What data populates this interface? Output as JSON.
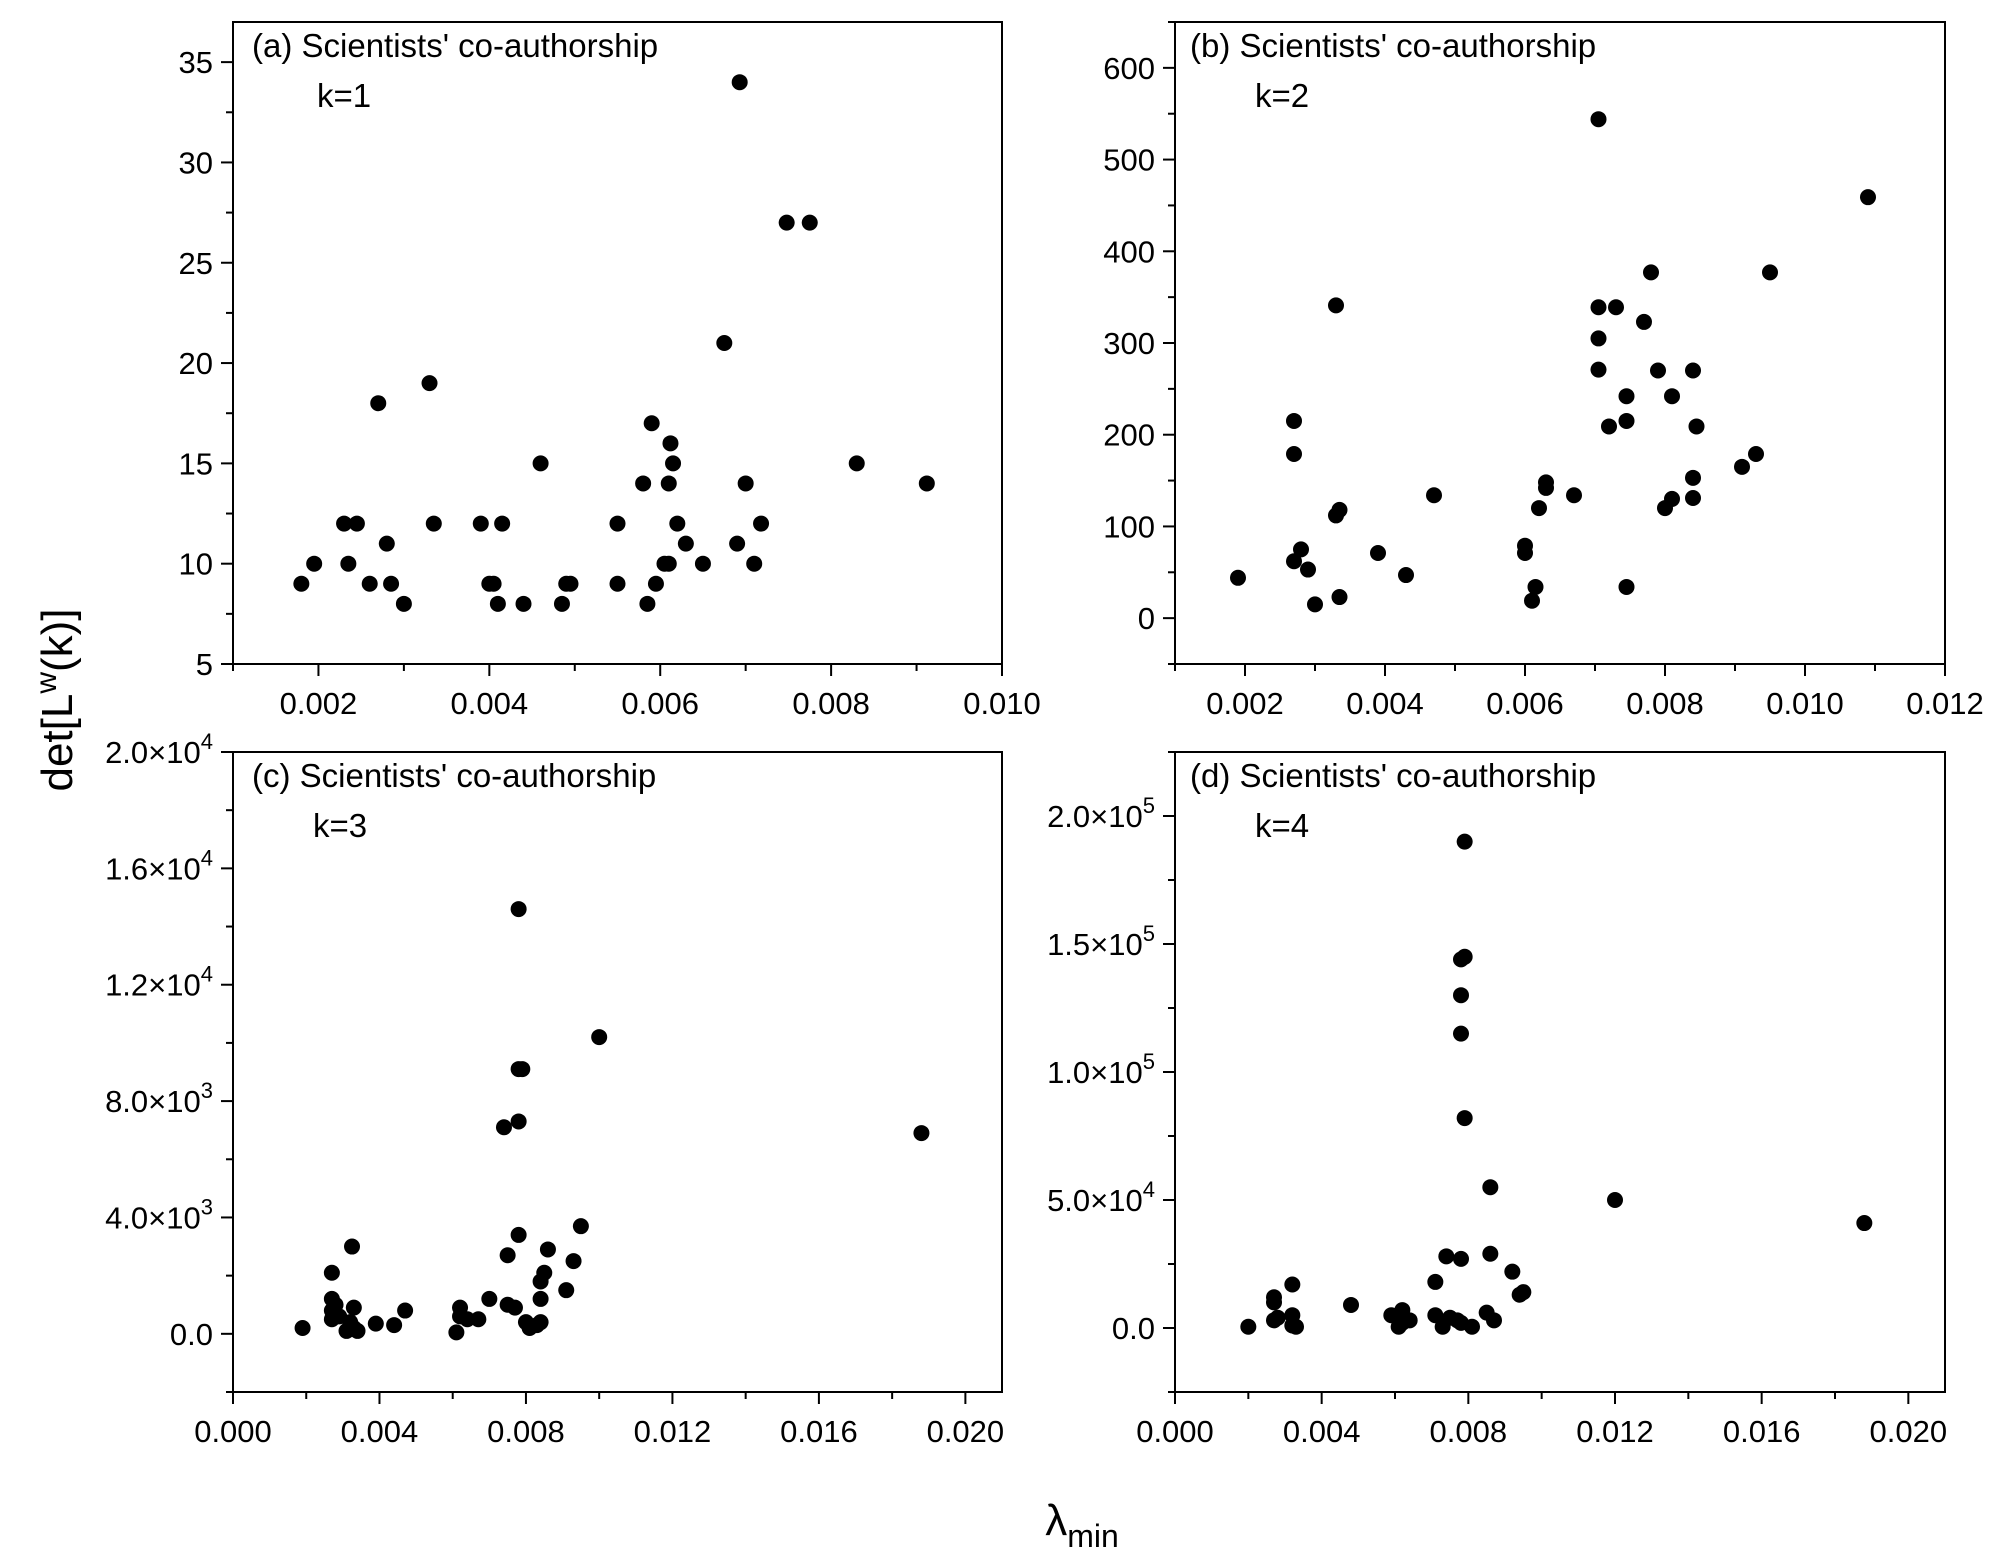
{
  "figure": {
    "ylabel_main": "det[L",
    "ylabel_sup": "w",
    "ylabel_tail": "(k)]",
    "xlabel_main": "λ",
    "xlabel_sub": "min"
  },
  "chart_data": [
    {
      "type": "scatter",
      "title": "(a) Scientists' co-authorship",
      "k_label": "k=1",
      "xlim": [
        0.001,
        0.01
      ],
      "ylim": [
        5,
        37
      ],
      "xticks": [
        0.002,
        0.004,
        0.006,
        0.008,
        0.01
      ],
      "xtick_labels": [
        "0.002",
        "0.004",
        "0.006",
        "0.008",
        "0.010"
      ],
      "yticks": [
        5,
        10,
        15,
        20,
        25,
        30,
        35
      ],
      "ytick_labels": [
        "5",
        "10",
        "15",
        "20",
        "25",
        "30",
        "35"
      ],
      "points": [
        [
          0.0018,
          9
        ],
        [
          0.00195,
          10
        ],
        [
          0.0023,
          12
        ],
        [
          0.00235,
          10
        ],
        [
          0.00245,
          12
        ],
        [
          0.0026,
          9
        ],
        [
          0.0027,
          18
        ],
        [
          0.0028,
          11
        ],
        [
          0.00285,
          9
        ],
        [
          0.003,
          8
        ],
        [
          0.0033,
          19
        ],
        [
          0.00335,
          12
        ],
        [
          0.0039,
          12
        ],
        [
          0.004,
          9
        ],
        [
          0.00405,
          9
        ],
        [
          0.0041,
          8
        ],
        [
          0.00415,
          12
        ],
        [
          0.0044,
          8
        ],
        [
          0.0046,
          15
        ],
        [
          0.00485,
          8
        ],
        [
          0.0049,
          9
        ],
        [
          0.00495,
          9
        ],
        [
          0.0055,
          9
        ],
        [
          0.0055,
          12
        ],
        [
          0.0058,
          14
        ],
        [
          0.00585,
          8
        ],
        [
          0.0059,
          17
        ],
        [
          0.00595,
          9
        ],
        [
          0.00605,
          10
        ],
        [
          0.0061,
          14
        ],
        [
          0.0061,
          10
        ],
        [
          0.00612,
          16
        ],
        [
          0.00615,
          15
        ],
        [
          0.0062,
          12
        ],
        [
          0.0063,
          11
        ],
        [
          0.0065,
          10
        ],
        [
          0.00675,
          21
        ],
        [
          0.0069,
          11
        ],
        [
          0.00693,
          34
        ],
        [
          0.007,
          14
        ],
        [
          0.0071,
          10
        ],
        [
          0.00718,
          12
        ],
        [
          0.00748,
          27
        ],
        [
          0.00775,
          27
        ],
        [
          0.0083,
          15
        ],
        [
          0.00912,
          14
        ]
      ]
    },
    {
      "type": "scatter",
      "title": "(b) Scientists' co-authorship",
      "k_label": "k=2",
      "xlim": [
        0.001,
        0.012
      ],
      "ylim": [
        -50,
        650
      ],
      "xticks": [
        0.002,
        0.004,
        0.006,
        0.008,
        0.01,
        0.012
      ],
      "xtick_labels": [
        "0.002",
        "0.004",
        "0.006",
        "0.008",
        "0.010",
        "0.012"
      ],
      "yticks": [
        0,
        100,
        200,
        300,
        400,
        500,
        600
      ],
      "ytick_labels": [
        "0",
        "100",
        "200",
        "300",
        "400",
        "500",
        "600"
      ],
      "points": [
        [
          0.0019,
          44
        ],
        [
          0.0027,
          62
        ],
        [
          0.0027,
          179
        ],
        [
          0.0027,
          215
        ],
        [
          0.0028,
          75
        ],
        [
          0.0029,
          53
        ],
        [
          0.003,
          15
        ],
        [
          0.0033,
          341
        ],
        [
          0.0033,
          112
        ],
        [
          0.00335,
          118
        ],
        [
          0.00335,
          23
        ],
        [
          0.0039,
          71
        ],
        [
          0.0043,
          47
        ],
        [
          0.0047,
          134
        ],
        [
          0.006,
          79
        ],
        [
          0.006,
          71
        ],
        [
          0.0061,
          19
        ],
        [
          0.00615,
          34
        ],
        [
          0.0062,
          120
        ],
        [
          0.0063,
          148
        ],
        [
          0.0063,
          142
        ],
        [
          0.0067,
          134
        ],
        [
          0.00705,
          339
        ],
        [
          0.00705,
          305
        ],
        [
          0.00705,
          271
        ],
        [
          0.00705,
          544
        ],
        [
          0.0072,
          209
        ],
        [
          0.0073,
          339
        ],
        [
          0.00745,
          242
        ],
        [
          0.00745,
          215
        ],
        [
          0.00745,
          34
        ],
        [
          0.0077,
          323
        ],
        [
          0.0078,
          377
        ],
        [
          0.0079,
          270
        ],
        [
          0.008,
          120
        ],
        [
          0.0081,
          130
        ],
        [
          0.0081,
          242
        ],
        [
          0.0084,
          270
        ],
        [
          0.0084,
          153
        ],
        [
          0.0084,
          131
        ],
        [
          0.00845,
          209
        ],
        [
          0.0091,
          165
        ],
        [
          0.0093,
          179
        ],
        [
          0.0095,
          377
        ],
        [
          0.0109,
          459
        ]
      ]
    },
    {
      "type": "scatter",
      "title": "(c) Scientists' co-authorship",
      "k_label": "k=3",
      "xlim": [
        0.0,
        0.021
      ],
      "ylim": [
        -2000,
        20000
      ],
      "xticks": [
        0.0,
        0.004,
        0.008,
        0.012,
        0.016,
        0.02
      ],
      "xtick_labels": [
        "0.000",
        "0.004",
        "0.008",
        "0.012",
        "0.016",
        "0.020"
      ],
      "yticks": [
        0,
        4000,
        8000,
        12000,
        16000,
        20000
      ],
      "ytick_mant": [
        "0.0",
        "4.0×10",
        "8.0×10",
        "1.2×10",
        "1.6×10",
        "2.0×10"
      ],
      "ytick_exp": [
        "",
        "3",
        "3",
        "4",
        "4",
        "4"
      ],
      "points": [
        [
          0.0019,
          200
        ],
        [
          0.0027,
          2100
        ],
        [
          0.0027,
          1200
        ],
        [
          0.0027,
          800
        ],
        [
          0.0027,
          500
        ],
        [
          0.0028,
          1000
        ],
        [
          0.0029,
          600
        ],
        [
          0.0031,
          100
        ],
        [
          0.0032,
          400
        ],
        [
          0.00325,
          3000
        ],
        [
          0.0033,
          900
        ],
        [
          0.0033,
          200
        ],
        [
          0.0034,
          100
        ],
        [
          0.0039,
          350
        ],
        [
          0.0044,
          300
        ],
        [
          0.0047,
          800
        ],
        [
          0.0061,
          50
        ],
        [
          0.0062,
          900
        ],
        [
          0.0062,
          600
        ],
        [
          0.0064,
          500
        ],
        [
          0.0067,
          500
        ],
        [
          0.007,
          1200
        ],
        [
          0.0074,
          7100
        ],
        [
          0.0075,
          2700
        ],
        [
          0.0075,
          1000
        ],
        [
          0.0077,
          900
        ],
        [
          0.0078,
          14600
        ],
        [
          0.0078,
          9100
        ],
        [
          0.0078,
          7300
        ],
        [
          0.0078,
          3400
        ],
        [
          0.0079,
          9100
        ],
        [
          0.008,
          400
        ],
        [
          0.0081,
          200
        ],
        [
          0.0083,
          300
        ],
        [
          0.0084,
          400
        ],
        [
          0.0084,
          1200
        ],
        [
          0.0084,
          1800
        ],
        [
          0.0085,
          2100
        ],
        [
          0.0086,
          2900
        ],
        [
          0.0091,
          1500
        ],
        [
          0.0093,
          2500
        ],
        [
          0.0095,
          3700
        ],
        [
          0.01,
          10200
        ],
        [
          0.0188,
          6900
        ]
      ]
    },
    {
      "type": "scatter",
      "title": "(d) Scientists' co-authorship",
      "k_label": "k=4",
      "xlim": [
        0.0,
        0.021
      ],
      "ylim": [
        -25000,
        225000
      ],
      "xticks": [
        0.0,
        0.004,
        0.008,
        0.012,
        0.016,
        0.02
      ],
      "xtick_labels": [
        "0.000",
        "0.004",
        "0.008",
        "0.012",
        "0.016",
        "0.020"
      ],
      "yticks": [
        0,
        50000,
        100000,
        150000,
        200000
      ],
      "ytick_mant": [
        "0.0",
        "5.0×10",
        "1.0×10",
        "1.5×10",
        "2.0×10"
      ],
      "ytick_exp": [
        "",
        "4",
        "5",
        "5",
        "5"
      ],
      "points": [
        [
          0.002,
          500
        ],
        [
          0.0027,
          12000
        ],
        [
          0.0027,
          10000
        ],
        [
          0.0027,
          3000
        ],
        [
          0.0028,
          4000
        ],
        [
          0.0032,
          17000
        ],
        [
          0.0032,
          5000
        ],
        [
          0.0032,
          1000
        ],
        [
          0.0033,
          500
        ],
        [
          0.0048,
          9000
        ],
        [
          0.0059,
          5000
        ],
        [
          0.0061,
          500
        ],
        [
          0.0062,
          7000
        ],
        [
          0.0062,
          2000
        ],
        [
          0.0064,
          3000
        ],
        [
          0.0071,
          18000
        ],
        [
          0.0071,
          5000
        ],
        [
          0.0073,
          500
        ],
        [
          0.0074,
          28000
        ],
        [
          0.0075,
          4000
        ],
        [
          0.0077,
          3000
        ],
        [
          0.0078,
          144000
        ],
        [
          0.0078,
          130000
        ],
        [
          0.0078,
          115000
        ],
        [
          0.0078,
          27000
        ],
        [
          0.0078,
          2000
        ],
        [
          0.0079,
          190000
        ],
        [
          0.0079,
          145000
        ],
        [
          0.0079,
          82000
        ],
        [
          0.0081,
          500
        ],
        [
          0.0085,
          6000
        ],
        [
          0.0086,
          55000
        ],
        [
          0.0086,
          29000
        ],
        [
          0.0087,
          3000
        ],
        [
          0.0092,
          22000
        ],
        [
          0.0094,
          13000
        ],
        [
          0.0095,
          14000
        ],
        [
          0.012,
          50000
        ],
        [
          0.0188,
          41000
        ]
      ]
    }
  ]
}
